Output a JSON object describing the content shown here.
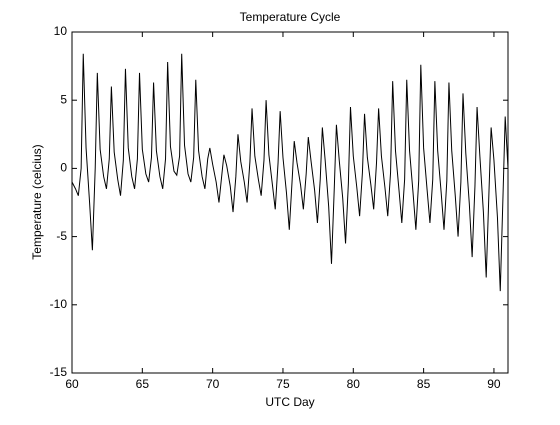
{
  "chart_data": {
    "type": "line",
    "title": "Temperature Cycle",
    "x_label": "UTC Day",
    "y_label": "Temperature (celcius)",
    "x": [
      60,
      60.25,
      60.45,
      60.65,
      60.8,
      61,
      61.25,
      61.45,
      61.65,
      61.8,
      62,
      62.25,
      62.45,
      62.65,
      62.8,
      63,
      63.25,
      63.45,
      63.65,
      63.8,
      64,
      64.25,
      64.45,
      64.65,
      64.8,
      65,
      65.25,
      65.45,
      65.65,
      65.8,
      66,
      66.25,
      66.45,
      66.65,
      66.8,
      67,
      67.25,
      67.45,
      67.65,
      67.8,
      68,
      68.25,
      68.45,
      68.65,
      68.8,
      69,
      69.25,
      69.45,
      69.65,
      69.8,
      70,
      70.25,
      70.45,
      70.65,
      70.8,
      71,
      71.25,
      71.45,
      71.65,
      71.8,
      72,
      72.25,
      72.45,
      72.65,
      72.8,
      73,
      73.25,
      73.45,
      73.65,
      73.8,
      74,
      74.25,
      74.45,
      74.65,
      74.8,
      75,
      75.25,
      75.45,
      75.65,
      75.8,
      76,
      76.25,
      76.45,
      76.65,
      76.8,
      77,
      77.25,
      77.45,
      77.65,
      77.8,
      78,
      78.25,
      78.45,
      78.65,
      78.8,
      79,
      79.25,
      79.45,
      79.65,
      79.8,
      80,
      80.25,
      80.45,
      80.65,
      80.8,
      81,
      81.25,
      81.45,
      81.65,
      81.8,
      82,
      82.25,
      82.45,
      82.65,
      82.8,
      83,
      83.25,
      83.45,
      83.65,
      83.8,
      84,
      84.25,
      84.45,
      84.65,
      84.8,
      85,
      85.25,
      85.45,
      85.65,
      85.8,
      86,
      86.25,
      86.45,
      86.65,
      86.8,
      87,
      87.25,
      87.45,
      87.65,
      87.8,
      88,
      88.25,
      88.45,
      88.65,
      88.8,
      89,
      89.25,
      89.45,
      89.65,
      89.8,
      90,
      90.25,
      90.45,
      90.65,
      90.8,
      91
    ],
    "series": [
      {
        "color": "#000000",
        "values": [
          -1,
          -1.5,
          -2,
          0,
          8.4,
          1.5,
          -2.5,
          -6,
          0,
          7.0,
          1.4,
          -0.6,
          -1.5,
          0.7,
          6.0,
          1.2,
          -0.8,
          -2,
          0.6,
          7.3,
          1.5,
          -0.6,
          -1.5,
          0.7,
          7.0,
          1.4,
          -0.4,
          -1,
          0.8,
          6.3,
          1.3,
          -0.6,
          -1.5,
          0.7,
          7.8,
          1.6,
          -0.2,
          -0.5,
          0.9,
          8.4,
          1.7,
          -0.4,
          -1,
          0.8,
          6.5,
          1.3,
          -0.6,
          -1.5,
          0.7,
          1.5,
          0.3,
          -1,
          -2.5,
          -0.5,
          1.0,
          0.2,
          -1.3,
          -3.2,
          -0.6,
          2.5,
          0.5,
          -1,
          -2.5,
          0.5,
          4.4,
          0.9,
          -0.8,
          -2,
          0.6,
          5.0,
          1.0,
          -1.2,
          -3,
          0.4,
          4.2,
          0.8,
          -1.8,
          -4.5,
          -0.9,
          2.0,
          0.4,
          -1.2,
          -3,
          -0.4,
          2.3,
          0.5,
          -1.6,
          -4,
          -0.8,
          3.0,
          0.6,
          -2.8,
          -7,
          -1.4,
          3.2,
          0.6,
          -2.2,
          -5.5,
          -1.1,
          4.5,
          0.9,
          -1.4,
          -3.5,
          -0.3,
          4.0,
          0.8,
          -1.2,
          -3,
          0.4,
          4.4,
          0.9,
          -1.4,
          -3.5,
          -0.3,
          6.4,
          1.3,
          -1.6,
          -4,
          -0.8,
          6.5,
          1.3,
          -1.8,
          -4.5,
          -0.9,
          7.6,
          1.5,
          -1.6,
          -4,
          -0.8,
          6.4,
          1.3,
          -1.8,
          -4.5,
          -0.9,
          6.3,
          1.3,
          -2,
          -5,
          -1,
          5.5,
          1.1,
          -2.6,
          -6.5,
          -1.3,
          4.5,
          0.9,
          -3.2,
          -8,
          -1.6,
          3.0,
          0.6,
          -3.6,
          -9,
          -1.8,
          3.8,
          0
        ]
      }
    ],
    "xlim": [
      60,
      91
    ],
    "ylim": [
      -15,
      10
    ],
    "xticks": [
      60,
      65,
      70,
      75,
      80,
      85,
      90
    ],
    "yticks": [
      -15,
      -10,
      -5,
      0,
      5,
      10
    ]
  }
}
